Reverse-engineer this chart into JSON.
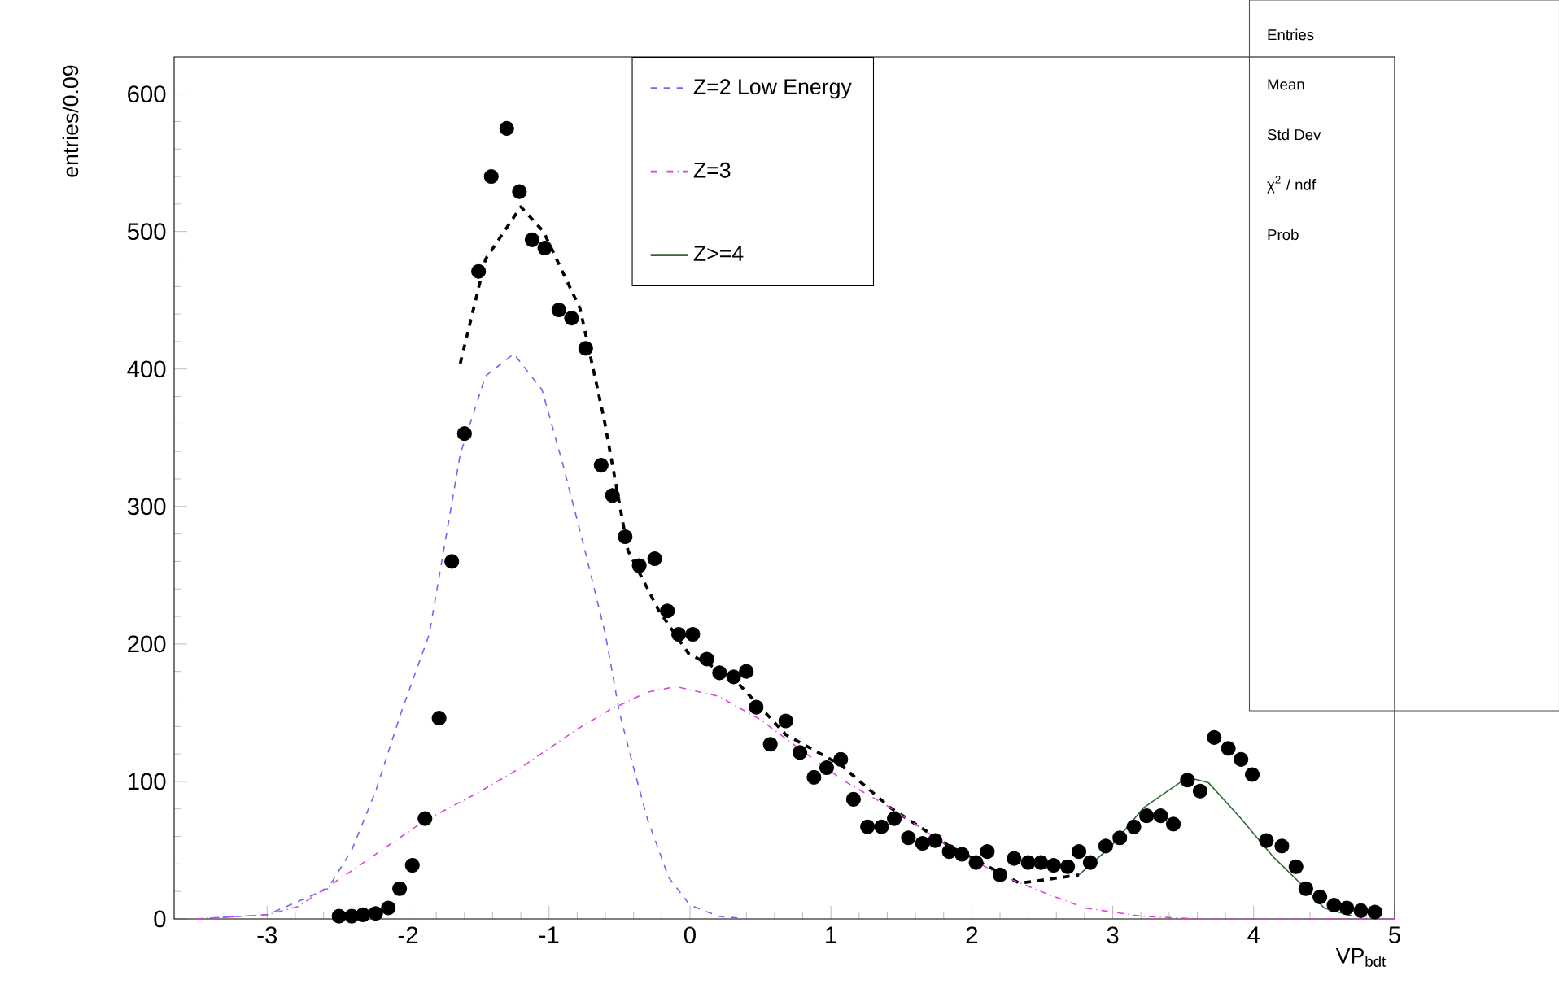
{
  "chart_data": {
    "type": "line",
    "xlabel": "VP$_{bdt}$",
    "ylabel": "entries/0.09",
    "xlim": [
      -3.66,
      5
    ],
    "ylim": [
      0,
      627
    ],
    "xticks": [
      -3,
      -2,
      -1,
      0,
      1,
      2,
      3,
      4,
      5
    ],
    "yticks": [
      0,
      100,
      200,
      300,
      400,
      500,
      600
    ],
    "legend": "top",
    "grid": false,
    "annotations": [
      "Entries",
      "Mean",
      "Std Dev",
      "χ$^{2}$ / ndf",
      "Prob"
    ],
    "series": [
      {
        "type": "scatter",
        "marker": "circle",
        "color": "#000000",
        "x": [
          -2.49,
          -2.4,
          -2.32,
          -2.23,
          -2.14,
          -2.06,
          -1.97,
          -1.88,
          -1.78,
          -1.69,
          -1.6,
          -1.5,
          -1.41,
          -1.3,
          -1.21,
          -1.12,
          -1.03,
          -0.93,
          -0.84,
          -0.74,
          -0.63,
          -0.55,
          -0.46,
          -0.36,
          -0.25,
          -0.16,
          -0.08,
          0.02,
          0.12,
          0.21,
          0.31,
          0.4,
          0.47,
          0.57,
          0.68,
          0.78,
          0.88,
          0.97,
          1.07,
          1.16,
          1.26,
          1.36,
          1.45,
          1.55,
          1.65,
          1.74,
          1.84,
          1.93,
          2.03,
          2.11,
          2.2,
          2.3,
          2.4,
          2.49,
          2.58,
          2.68,
          2.76,
          2.84,
          2.95,
          3.05,
          3.15,
          3.24,
          3.34,
          3.43,
          3.53,
          3.62,
          3.72,
          3.82,
          3.91,
          3.99,
          4.09,
          4.2,
          4.3,
          4.37,
          4.47,
          4.57,
          4.66,
          4.76,
          4.86
        ],
        "values": [
          2,
          2,
          3,
          4,
          8,
          22,
          39,
          73,
          146,
          260,
          353,
          471,
          540,
          575,
          529,
          494,
          488,
          443,
          437,
          415,
          330,
          308,
          278,
          257,
          262,
          224,
          207,
          207,
          189,
          179,
          176,
          180,
          154,
          127,
          144,
          121,
          103,
          110,
          116,
          87,
          67,
          67,
          73,
          59,
          55,
          57,
          49,
          47,
          41,
          49,
          32,
          44,
          41,
          41,
          39,
          38,
          49,
          41,
          53,
          59,
          67,
          75,
          75,
          69,
          101,
          93,
          132,
          124,
          116,
          105,
          57,
          53,
          38,
          22,
          16,
          10,
          8,
          6,
          5
        ]
      },
      {
        "line_style": "dashed",
        "color": "#000000",
        "x": [
          -1.63,
          -1.45,
          -1.2,
          -1.04,
          -0.78,
          -0.61,
          -0.44,
          -0.22,
          -0.01,
          0.3,
          0.68,
          1.07,
          1.42,
          1.84,
          2.34,
          2.76
        ],
        "values": [
          404,
          480,
          518,
          500,
          444,
          364,
          268,
          224,
          193,
          176,
          134,
          112,
          81,
          53,
          26,
          32
        ]
      },
      {
        "name": "Z=2 Low Energy",
        "line_style": "dashed",
        "color": "#6a6af0",
        "x": [
          -3.5,
          -3.0,
          -2.57,
          -2.4,
          -2.23,
          -2.05,
          -1.85,
          -1.63,
          -1.45,
          -1.25,
          -1.05,
          -0.9,
          -0.75,
          -0.6,
          -0.5,
          -0.4,
          -0.3,
          -0.15,
          0,
          0.2,
          0.4
        ],
        "values": [
          0,
          3,
          22,
          50,
          93,
          150,
          207,
          338,
          395,
          411,
          385,
          330,
          270,
          207,
          150,
          110,
          72,
          30,
          10,
          2,
          0
        ]
      },
      {
        "name": "Z=3",
        "line_style": "dotted",
        "color": "#e040e0",
        "x": [
          -3.5,
          -3.0,
          -2.78,
          -2.4,
          -1.89,
          -1.5,
          -1.2,
          -0.8,
          -0.57,
          -0.3,
          -0.1,
          0.2,
          0.5,
          0.8,
          1.1,
          1.42,
          1.8,
          2.2,
          2.49,
          2.8,
          3.2,
          3.6,
          5
        ],
        "values": [
          0,
          3,
          9,
          35,
          71,
          92,
          110,
          138,
          152,
          165,
          169,
          162,
          145,
          122,
          100,
          81,
          55,
          32,
          20,
          8,
          2,
          0,
          0
        ]
      },
      {
        "name": "Z>=4",
        "line_style": "solid",
        "color": "#2e6b2e",
        "x": [
          2.76,
          2.99,
          3.22,
          3.53,
          3.68,
          3.91,
          4.14,
          4.37,
          4.5,
          4.7
        ],
        "values": [
          32,
          53,
          81,
          103,
          99,
          73,
          45,
          22,
          8,
          2
        ]
      }
    ]
  }
}
